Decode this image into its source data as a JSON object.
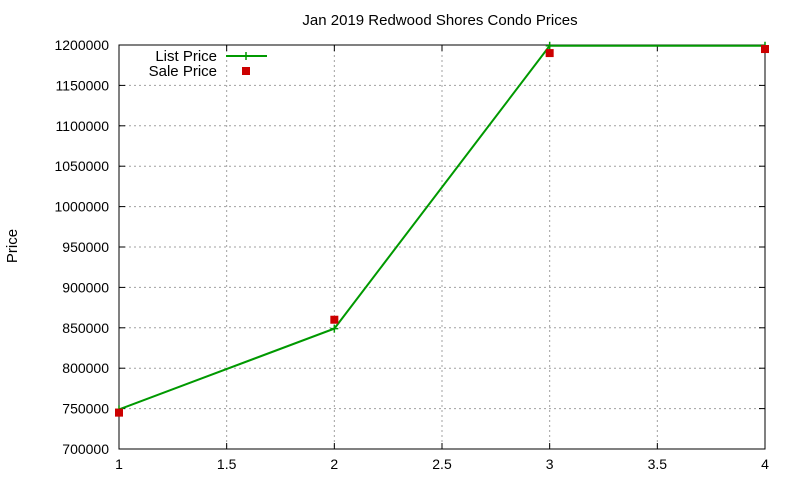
{
  "chart_data": {
    "type": "line",
    "title": "Jan 2019 Redwood Shores Condo Prices",
    "xlabel": "",
    "ylabel": "Price",
    "xlim": [
      1,
      4
    ],
    "ylim": [
      700000,
      1200000
    ],
    "xticks": [
      1,
      1.5,
      2,
      2.5,
      3,
      3.5,
      4
    ],
    "yticks": [
      700000,
      750000,
      800000,
      850000,
      900000,
      950000,
      1000000,
      1050000,
      1100000,
      1150000,
      1200000
    ],
    "grid": true,
    "legend_position": "top-left",
    "series": [
      {
        "name": "List Price",
        "style": "line-with-plus",
        "color": "#009900",
        "x": [
          1,
          2,
          3,
          4
        ],
        "y": [
          749000,
          849000,
          1199000,
          1199000
        ]
      },
      {
        "name": "Sale Price",
        "style": "square-points",
        "color": "#cc0000",
        "x": [
          1,
          2,
          3,
          4
        ],
        "y": [
          745000,
          860000,
          1190000,
          1195000
        ]
      }
    ]
  }
}
